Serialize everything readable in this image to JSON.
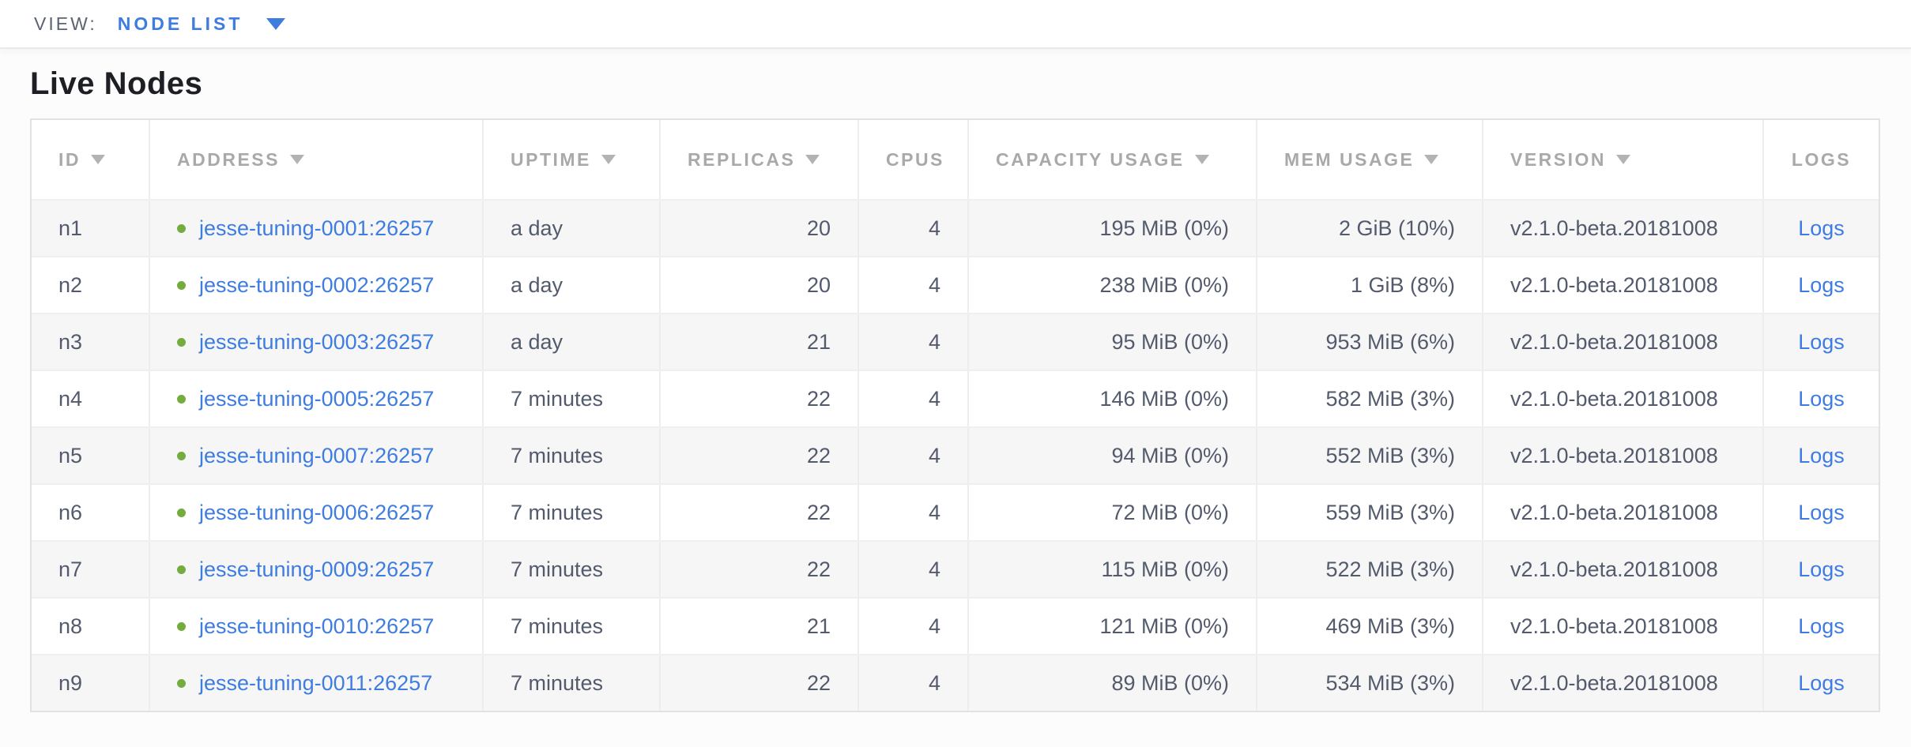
{
  "view_bar": {
    "label": "VIEW:",
    "selected_view": "NODE LIST"
  },
  "page": {
    "title": "Live Nodes"
  },
  "colors": {
    "accent_blue": "#3f7ce0",
    "healthy_green": "#74ad3d",
    "header_gray": "#a9a9a9",
    "cell_text": "#525a6c",
    "row_alt_bg": "#f6f6f6"
  },
  "table": {
    "columns": [
      {
        "key": "id",
        "label": "ID",
        "sortable": true,
        "align": "left"
      },
      {
        "key": "address",
        "label": "ADDRESS",
        "sortable": true,
        "align": "left"
      },
      {
        "key": "uptime",
        "label": "UPTIME",
        "sortable": true,
        "align": "left"
      },
      {
        "key": "replicas",
        "label": "REPLICAS",
        "sortable": true,
        "align": "left"
      },
      {
        "key": "cpus",
        "label": "CPUS",
        "sortable": false,
        "align": "left"
      },
      {
        "key": "capacity",
        "label": "CAPACITY USAGE",
        "sortable": true,
        "align": "left"
      },
      {
        "key": "mem",
        "label": "MEM USAGE",
        "sortable": true,
        "align": "left"
      },
      {
        "key": "version",
        "label": "VERSION",
        "sortable": true,
        "align": "left"
      },
      {
        "key": "logs",
        "label": "LOGS",
        "sortable": false,
        "align": "center"
      }
    ],
    "cell_align": {
      "id": "left",
      "address": "left",
      "uptime": "left",
      "replicas": "right",
      "cpus": "right",
      "capacity": "right",
      "mem": "right",
      "version": "left",
      "logs": "center"
    },
    "logs_link_label": "Logs",
    "rows": [
      {
        "id": "n1",
        "address": "jesse-tuning-0001:26257",
        "uptime": "a day",
        "replicas": "20",
        "cpus": "4",
        "capacity": "195 MiB (0%)",
        "mem": "2 GiB (10%)",
        "version": "v2.1.0-beta.20181008",
        "logs": "Logs"
      },
      {
        "id": "n2",
        "address": "jesse-tuning-0002:26257",
        "uptime": "a day",
        "replicas": "20",
        "cpus": "4",
        "capacity": "238 MiB (0%)",
        "mem": "1 GiB (8%)",
        "version": "v2.1.0-beta.20181008",
        "logs": "Logs"
      },
      {
        "id": "n3",
        "address": "jesse-tuning-0003:26257",
        "uptime": "a day",
        "replicas": "21",
        "cpus": "4",
        "capacity": "95 MiB (0%)",
        "mem": "953 MiB (6%)",
        "version": "v2.1.0-beta.20181008",
        "logs": "Logs"
      },
      {
        "id": "n4",
        "address": "jesse-tuning-0005:26257",
        "uptime": "7 minutes",
        "replicas": "22",
        "cpus": "4",
        "capacity": "146 MiB (0%)",
        "mem": "582 MiB (3%)",
        "version": "v2.1.0-beta.20181008",
        "logs": "Logs"
      },
      {
        "id": "n5",
        "address": "jesse-tuning-0007:26257",
        "uptime": "7 minutes",
        "replicas": "22",
        "cpus": "4",
        "capacity": "94 MiB (0%)",
        "mem": "552 MiB (3%)",
        "version": "v2.1.0-beta.20181008",
        "logs": "Logs"
      },
      {
        "id": "n6",
        "address": "jesse-tuning-0006:26257",
        "uptime": "7 minutes",
        "replicas": "22",
        "cpus": "4",
        "capacity": "72 MiB (0%)",
        "mem": "559 MiB (3%)",
        "version": "v2.1.0-beta.20181008",
        "logs": "Logs"
      },
      {
        "id": "n7",
        "address": "jesse-tuning-0009:26257",
        "uptime": "7 minutes",
        "replicas": "22",
        "cpus": "4",
        "capacity": "115 MiB (0%)",
        "mem": "522 MiB (3%)",
        "version": "v2.1.0-beta.20181008",
        "logs": "Logs"
      },
      {
        "id": "n8",
        "address": "jesse-tuning-0010:26257",
        "uptime": "7 minutes",
        "replicas": "21",
        "cpus": "4",
        "capacity": "121 MiB (0%)",
        "mem": "469 MiB (3%)",
        "version": "v2.1.0-beta.20181008",
        "logs": "Logs"
      },
      {
        "id": "n9",
        "address": "jesse-tuning-0011:26257",
        "uptime": "7 minutes",
        "replicas": "22",
        "cpus": "4",
        "capacity": "89 MiB (0%)",
        "mem": "534 MiB (3%)",
        "version": "v2.1.0-beta.20181008",
        "logs": "Logs"
      }
    ]
  }
}
